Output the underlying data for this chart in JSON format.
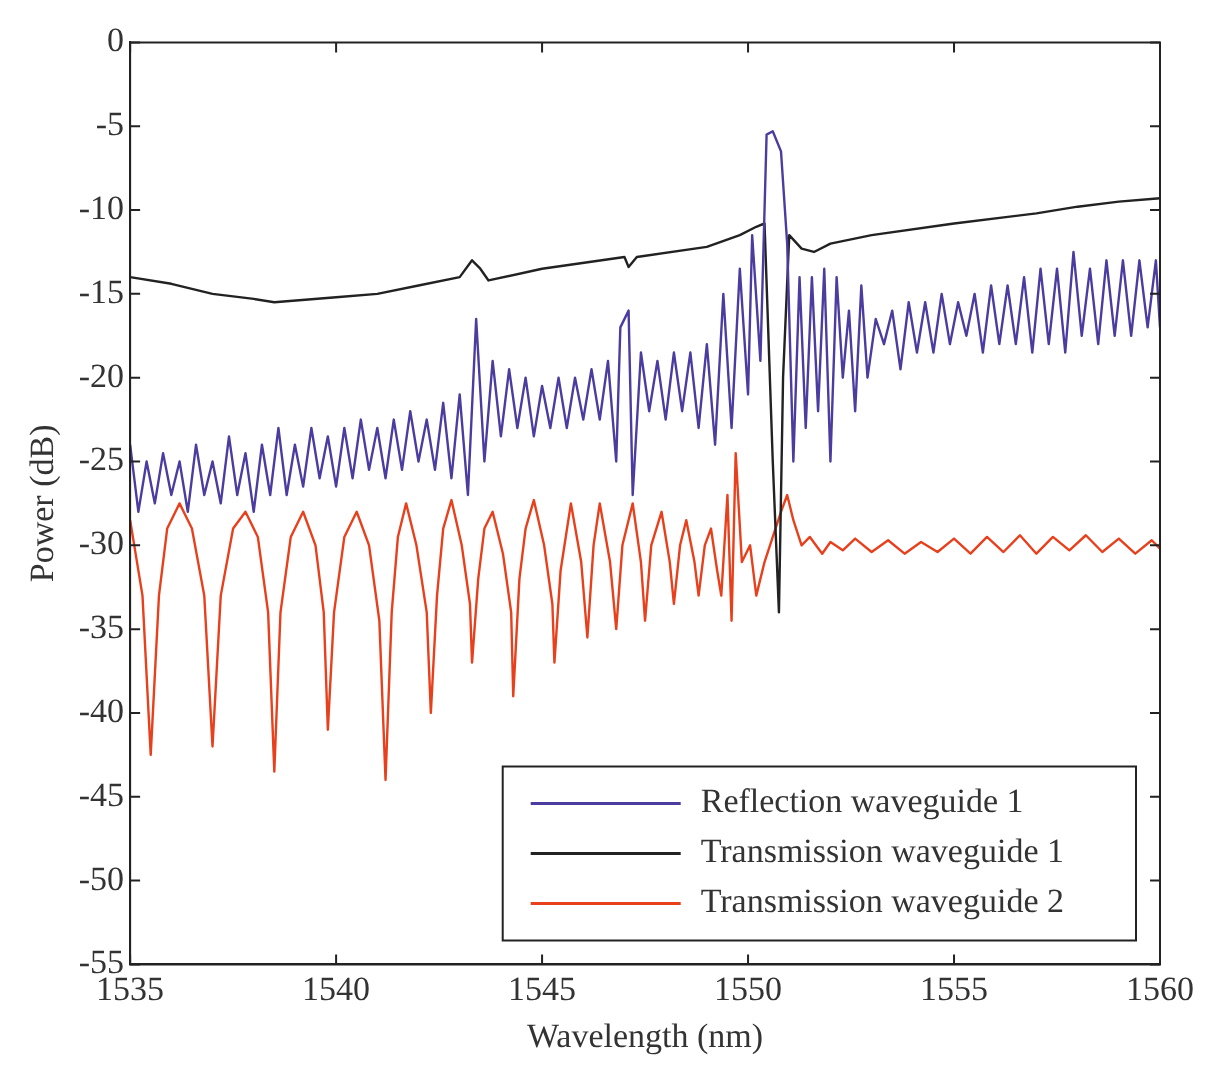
{
  "chart_data": {
    "type": "line",
    "xlabel": "Wavelength (nm)",
    "ylabel": "Power (dB)",
    "xlim": [
      1535,
      1560
    ],
    "xticks": [
      1535,
      1540,
      1545,
      1550,
      1555,
      1560
    ],
    "ylim": [
      -55,
      0
    ],
    "yticks": [
      -55,
      -50,
      -45,
      -40,
      -35,
      -30,
      -25,
      -20,
      -15,
      -10,
      -5,
      0
    ],
    "legend": "bottom right",
    "marker": "none",
    "line_style": "solid",
    "series": [
      {
        "name": "Reflection waveguide 1",
        "color": "#4b3ca0",
        "x": [
          1535,
          1535.2,
          1535.4,
          1535.6,
          1535.8,
          1536,
          1536.2,
          1536.4,
          1536.6,
          1536.8,
          1537,
          1537.2,
          1537.4,
          1537.6,
          1537.8,
          1538,
          1538.2,
          1538.4,
          1538.6,
          1538.8,
          1539,
          1539.2,
          1539.4,
          1539.6,
          1539.8,
          1540,
          1540.2,
          1540.4,
          1540.6,
          1540.8,
          1541,
          1541.2,
          1541.4,
          1541.6,
          1541.8,
          1542,
          1542.2,
          1542.4,
          1542.6,
          1542.8,
          1543,
          1543.2,
          1543.4,
          1543.6,
          1543.8,
          1544,
          1544.2,
          1544.4,
          1544.6,
          1544.8,
          1545,
          1545.2,
          1545.4,
          1545.6,
          1545.8,
          1546,
          1546.2,
          1546.4,
          1546.6,
          1546.8,
          1546.9,
          1547.1,
          1547.2,
          1547.4,
          1547.6,
          1547.8,
          1548,
          1548.2,
          1548.4,
          1548.6,
          1548.8,
          1549,
          1549.2,
          1549.4,
          1549.6,
          1549.8,
          1550,
          1550.1,
          1550.3,
          1550.45,
          1550.6,
          1550.8,
          1550.95,
          1551.1,
          1551.25,
          1551.4,
          1551.55,
          1551.7,
          1551.85,
          1552,
          1552.15,
          1552.3,
          1552.45,
          1552.6,
          1552.75,
          1552.9,
          1553.1,
          1553.3,
          1553.5,
          1553.7,
          1553.9,
          1554.1,
          1554.3,
          1554.5,
          1554.7,
          1554.9,
          1555.1,
          1555.3,
          1555.5,
          1555.7,
          1555.9,
          1556.1,
          1556.3,
          1556.5,
          1556.7,
          1556.9,
          1557.1,
          1557.3,
          1557.5,
          1557.7,
          1557.9,
          1558.1,
          1558.3,
          1558.5,
          1558.7,
          1558.9,
          1559.1,
          1559.3,
          1559.5,
          1559.7,
          1559.9,
          1560
        ],
        "values": [
          -24,
          -28,
          -25,
          -27.5,
          -24.5,
          -27,
          -25,
          -28,
          -24,
          -27,
          -25,
          -27.5,
          -23.5,
          -27,
          -24.5,
          -28,
          -24,
          -27,
          -23,
          -27,
          -24,
          -26.5,
          -23,
          -26,
          -23.5,
          -26.5,
          -23,
          -26,
          -22.5,
          -25.5,
          -23,
          -26,
          -22.5,
          -25.5,
          -22,
          -25,
          -22.5,
          -25.5,
          -21.5,
          -26,
          -21,
          -27,
          -16.5,
          -25,
          -19,
          -23.5,
          -19.5,
          -23,
          -20,
          -23.5,
          -20.5,
          -23,
          -20,
          -23,
          -20,
          -22.5,
          -19.5,
          -22.5,
          -19,
          -25,
          -17,
          -16,
          -27,
          -18.5,
          -22,
          -19,
          -22.5,
          -18.5,
          -22,
          -18.5,
          -23,
          -18,
          -24,
          -15,
          -23,
          -13.5,
          -21,
          -11.5,
          -19,
          -5.5,
          -5.3,
          -6.5,
          -12,
          -25,
          -14,
          -23,
          -14,
          -22,
          -13.5,
          -25,
          -14,
          -20,
          -16,
          -22,
          -14.5,
          -20,
          -16.5,
          -18,
          -16,
          -19.5,
          -15.5,
          -18.5,
          -15.5,
          -18.5,
          -15,
          -18,
          -15.5,
          -17.5,
          -15,
          -18.5,
          -14.5,
          -18,
          -14.5,
          -18,
          -14,
          -18.5,
          -13.5,
          -18,
          -13.5,
          -18.5,
          -12.5,
          -17.5,
          -13.5,
          -18,
          -13,
          -17.5,
          -13,
          -17.5,
          -13,
          -17,
          -13,
          -17
        ]
      },
      {
        "name": "Transmission waveguide 1",
        "color": "#222222",
        "x": [
          1535,
          1536,
          1537,
          1538,
          1538.5,
          1540,
          1541,
          1542,
          1543,
          1543.3,
          1543.5,
          1543.7,
          1545,
          1547,
          1547.1,
          1547.3,
          1549,
          1549.8,
          1550.2,
          1550.4,
          1550.6,
          1550.75,
          1550.85,
          1551,
          1551.3,
          1551.6,
          1552,
          1553,
          1555,
          1557,
          1558,
          1559,
          1560
        ],
        "values": [
          -14,
          -14.4,
          -15,
          -15.3,
          -15.5,
          -15.2,
          -15,
          -14.5,
          -14,
          -13,
          -13.5,
          -14.2,
          -13.5,
          -12.8,
          -13.4,
          -12.8,
          -12.2,
          -11.5,
          -11,
          -10.8,
          -25,
          -34,
          -20,
          -11.5,
          -12.3,
          -12.5,
          -12,
          -11.5,
          -10.8,
          -10.2,
          -9.8,
          -9.5,
          -9.3
        ]
      },
      {
        "name": "Transmission waveguide 2",
        "color": "#e8401c",
        "x": [
          1535,
          1535.3,
          1535.5,
          1535.7,
          1535.9,
          1536.2,
          1536.5,
          1536.8,
          1537,
          1537.2,
          1537.5,
          1537.8,
          1538.1,
          1538.35,
          1538.5,
          1538.65,
          1538.9,
          1539.2,
          1539.5,
          1539.7,
          1539.8,
          1539.95,
          1540.2,
          1540.5,
          1540.8,
          1541.05,
          1541.2,
          1541.35,
          1541.5,
          1541.7,
          1541.95,
          1542.2,
          1542.3,
          1542.45,
          1542.6,
          1542.8,
          1543.05,
          1543.25,
          1543.3,
          1543.45,
          1543.6,
          1543.8,
          1544.05,
          1544.25,
          1544.3,
          1544.45,
          1544.6,
          1544.8,
          1545.05,
          1545.25,
          1545.3,
          1545.45,
          1545.7,
          1545.95,
          1546.1,
          1546.25,
          1546.4,
          1546.65,
          1546.8,
          1546.95,
          1547.2,
          1547.4,
          1547.5,
          1547.65,
          1547.9,
          1548.1,
          1548.2,
          1548.35,
          1548.5,
          1548.7,
          1548.8,
          1548.95,
          1549.1,
          1549.25,
          1549.35,
          1549.5,
          1549.6,
          1549.7,
          1549.85,
          1550.05,
          1550.2,
          1550.4,
          1550.6,
          1550.8,
          1550.95,
          1551.1,
          1551.3,
          1551.5,
          1551.8,
          1552,
          1552.3,
          1552.6,
          1553,
          1553.4,
          1553.8,
          1554.2,
          1554.6,
          1555,
          1555.4,
          1555.8,
          1556.2,
          1556.6,
          1557,
          1557.4,
          1557.8,
          1558.2,
          1558.6,
          1559,
          1559.4,
          1559.8,
          1560
        ],
        "values": [
          -28.5,
          -33,
          -42.5,
          -33,
          -29,
          -27.5,
          -29,
          -33,
          -42,
          -33,
          -29,
          -28,
          -29.5,
          -34,
          -43.5,
          -34,
          -29.5,
          -28,
          -30,
          -34,
          -41,
          -34,
          -29.5,
          -28,
          -30,
          -34.5,
          -44,
          -34,
          -29.5,
          -27.5,
          -30,
          -34,
          -40,
          -33,
          -29,
          -27.3,
          -30,
          -33.5,
          -37,
          -32,
          -29,
          -28,
          -30.5,
          -34,
          -39,
          -32,
          -29,
          -27.3,
          -30,
          -33.5,
          -37,
          -31.5,
          -27.5,
          -31,
          -35.5,
          -30,
          -27.5,
          -31,
          -35,
          -30,
          -27.5,
          -31,
          -34.5,
          -30,
          -28,
          -31,
          -33.5,
          -30,
          -28.5,
          -31,
          -33,
          -30,
          -29,
          -31.5,
          -33,
          -27,
          -34.5,
          -24.5,
          -31,
          -30,
          -33,
          -31,
          -29.5,
          -28,
          -27,
          -28.5,
          -30,
          -29.5,
          -30.5,
          -29.8,
          -30.3,
          -29.6,
          -30.4,
          -29.7,
          -30.5,
          -29.8,
          -30.4,
          -29.6,
          -30.5,
          -29.5,
          -30.4,
          -29.4,
          -30.5,
          -29.5,
          -30.3,
          -29.4,
          -30.4,
          -29.6,
          -30.5,
          -29.7,
          -30.2
        ]
      }
    ]
  }
}
